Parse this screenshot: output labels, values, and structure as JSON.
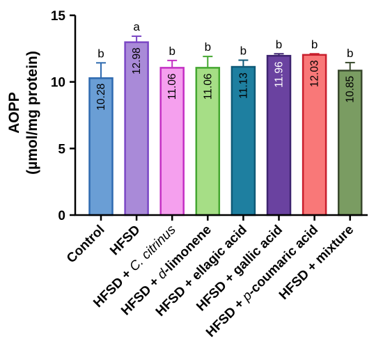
{
  "chart_data": {
    "type": "bar",
    "ylabel_line1": "AOPP",
    "ylabel_line2": "(µmol/mg protein)",
    "xlabel": "",
    "ylim": [
      0,
      15
    ],
    "yticks": [
      "0",
      "5",
      "10",
      "15"
    ],
    "categories": [
      {
        "parts": [
          {
            "t": "Control",
            "i": false
          }
        ]
      },
      {
        "parts": [
          {
            "t": "HFSD",
            "i": false
          }
        ]
      },
      {
        "parts": [
          {
            "t": "HFSD + ",
            "i": false
          },
          {
            "t": "C. citrinus",
            "i": true
          }
        ]
      },
      {
        "parts": [
          {
            "t": "HFSD + ",
            "i": false
          },
          {
            "t": "d",
            "i": true
          },
          {
            "t": "-limonene",
            "i": false
          }
        ]
      },
      {
        "parts": [
          {
            "t": "HFSD + ellagic acid",
            "i": false
          }
        ]
      },
      {
        "parts": [
          {
            "t": "HFSD + gallic acid",
            "i": false
          }
        ]
      },
      {
        "parts": [
          {
            "t": "HFSD + ",
            "i": false
          },
          {
            "t": "p",
            "i": true
          },
          {
            "t": "-coumaric acid",
            "i": false
          }
        ]
      },
      {
        "parts": [
          {
            "t": "HFSD + mixture",
            "i": false
          }
        ]
      }
    ],
    "values": [
      10.28,
      12.98,
      11.06,
      11.06,
      11.13,
      11.96,
      12.03,
      10.85
    ],
    "value_labels": [
      "10.28",
      "12.98",
      "11.06",
      "11.06",
      "11.13",
      "11.96",
      "12.03",
      "10.85"
    ],
    "errors": [
      1.15,
      0.45,
      0.55,
      0.85,
      0.5,
      0.15,
      0.08,
      0.6
    ],
    "significance": [
      "b",
      "a",
      "b",
      "b",
      "b",
      "b",
      "b",
      "b"
    ],
    "fill_colors": [
      "#6a9ed5",
      "#a98ad8",
      "#f5a0ee",
      "#a6de86",
      "#1e7fa0",
      "#6a42a0",
      "#f97878",
      "#7a9c62"
    ],
    "edge_colors": [
      "#2e6ab0",
      "#7b47c5",
      "#c430c4",
      "#44a730",
      "#0f5a78",
      "#3e2470",
      "#c81e2c",
      "#39492d"
    ],
    "value_label_colors": [
      "#000000",
      "#000000",
      "#000000",
      "#000000",
      "#000000",
      "#ffffff",
      "#000000",
      "#000000"
    ]
  }
}
